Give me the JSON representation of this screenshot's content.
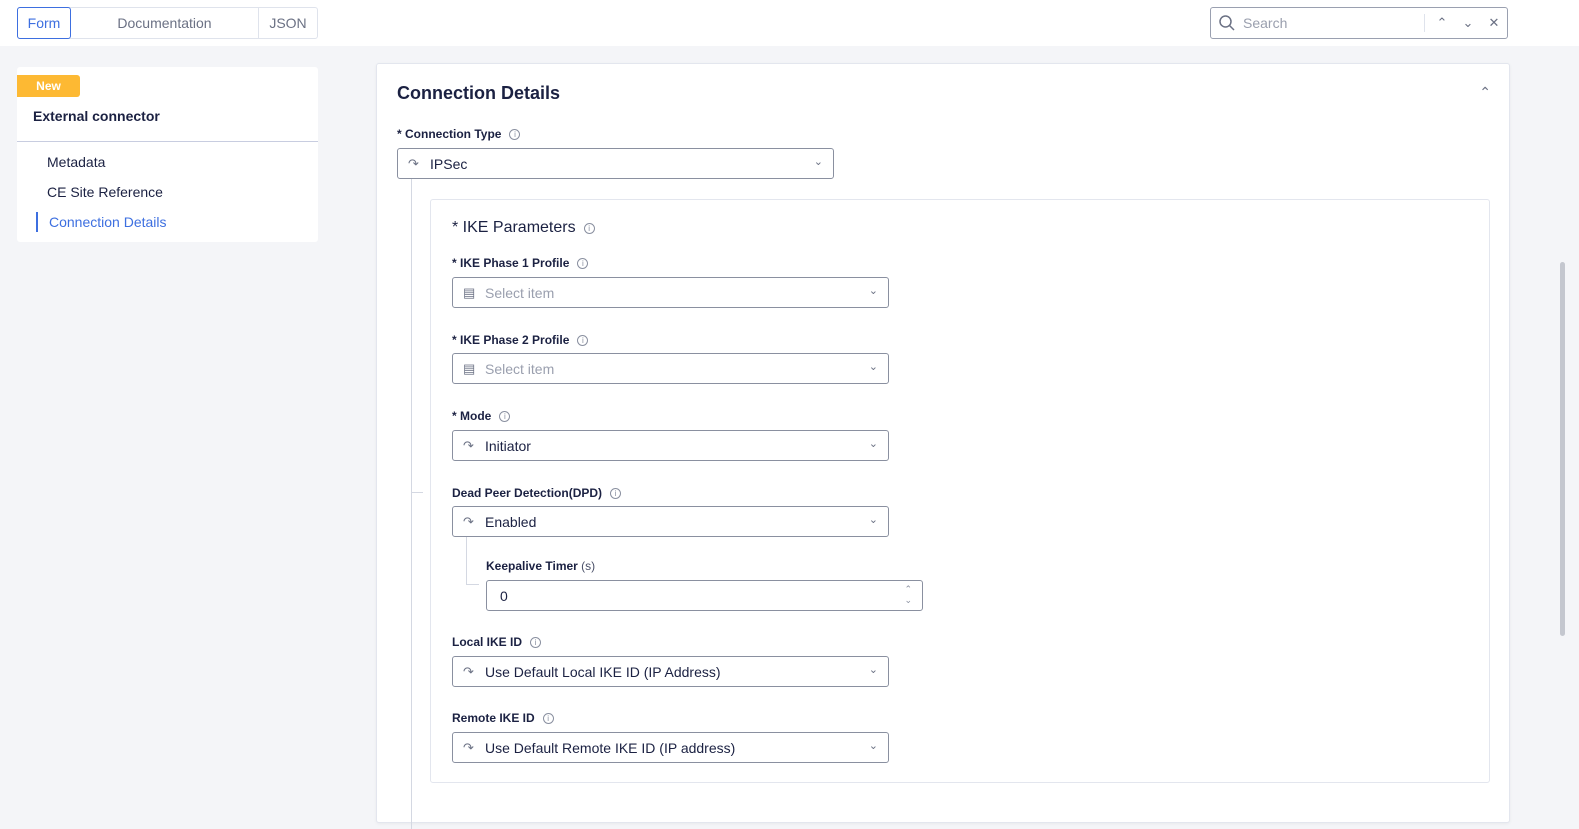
{
  "tabs": [
    {
      "label": "Form",
      "active": true
    },
    {
      "label": "Documentation"
    },
    {
      "label": "JSON"
    }
  ],
  "search": {
    "placeholder": "Search",
    "icon": "search-icon"
  },
  "sidebar": {
    "badge": "New",
    "title": "External connector",
    "items": [
      {
        "label": "Metadata"
      },
      {
        "label": "CE Site Reference"
      },
      {
        "label": "Connection Details",
        "active": true
      }
    ]
  },
  "main": {
    "title": "Connection Details",
    "connection_type": {
      "label": "* Connection Type",
      "value": "IPSec"
    },
    "ike": {
      "title": "* IKE Parameters",
      "phase1": {
        "label": "* IKE Phase 1 Profile",
        "placeholder": "Select item"
      },
      "phase2": {
        "label": "* IKE Phase 2 Profile",
        "placeholder": "Select item"
      },
      "mode": {
        "label": "* Mode",
        "value": "Initiator"
      },
      "dpd": {
        "label": "Dead Peer Detection(DPD)",
        "value": "Enabled"
      },
      "keepalive": {
        "label": "Keepalive Timer",
        "unit": "(s)",
        "value": "0"
      },
      "local_id": {
        "label": "Local IKE ID",
        "value": "Use Default Local IKE ID (IP Address)"
      },
      "remote_id": {
        "label": "Remote IKE ID",
        "value": "Use Default Remote IKE ID (IP address)"
      }
    }
  },
  "colors": {
    "accent": "#3d6fe0",
    "badge": "#fdb933"
  }
}
